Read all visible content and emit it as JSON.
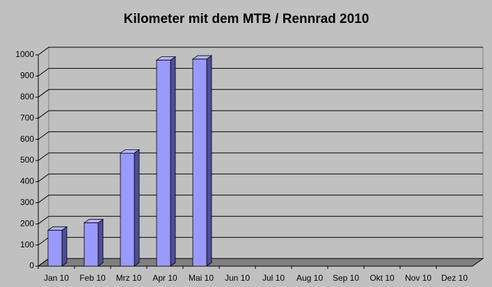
{
  "chart_data": {
    "type": "bar3d",
    "title": "Kilometer mit dem MTB / Rennrad 2010",
    "categories": [
      "Jan 10",
      "Feb 10",
      "Mrz 10",
      "Apr 10",
      "Mai 10",
      "Jun 10",
      "Jul 10",
      "Aug 10",
      "Sep 10",
      "Okt 10",
      "Nov 10",
      "Dez 10"
    ],
    "values": [
      170,
      205,
      535,
      975,
      980,
      null,
      null,
      null,
      null,
      null,
      null,
      null
    ],
    "color": "#9999ff",
    "ylim": [
      0,
      1000
    ],
    "yticks": [
      0,
      100,
      200,
      300,
      400,
      500,
      600,
      700,
      800,
      900,
      1000
    ],
    "grid": true
  }
}
